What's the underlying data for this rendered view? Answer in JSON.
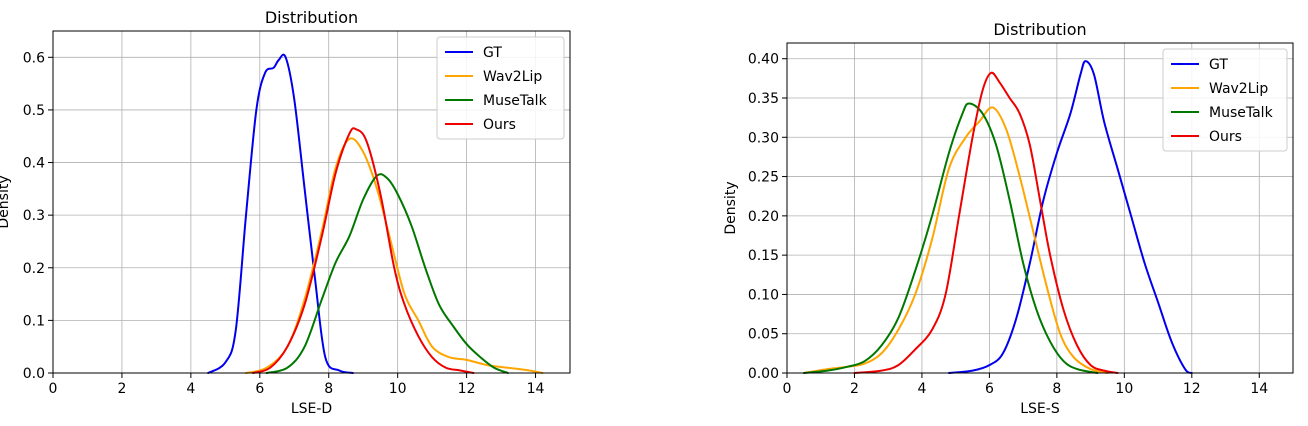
{
  "chart_data": [
    {
      "type": "line",
      "title": "Distribution",
      "xlabel": "LSE-D",
      "ylabel": "Density",
      "xlim": [
        0,
        15
      ],
      "ylim": [
        0,
        0.65
      ],
      "xticks": [
        "0",
        "2",
        "4",
        "6",
        "8",
        "10",
        "12",
        "14"
      ],
      "xtick_values": [
        0,
        2,
        4,
        6,
        8,
        10,
        12,
        14
      ],
      "yticks": [
        "0.0",
        "0.1",
        "0.2",
        "0.3",
        "0.4",
        "0.5",
        "0.6"
      ],
      "ytick_values": [
        0,
        0.1,
        0.2,
        0.3,
        0.4,
        0.5,
        0.6
      ],
      "grid": true,
      "legend_position": "top-right",
      "series": [
        {
          "name": "GT",
          "color": "#0000ee",
          "x": [
            4.5,
            5.0,
            5.3,
            5.6,
            5.9,
            6.15,
            6.4,
            6.55,
            6.75,
            7.0,
            7.3,
            7.6,
            7.9,
            8.3,
            8.7
          ],
          "y": [
            0.0,
            0.02,
            0.08,
            0.3,
            0.5,
            0.57,
            0.58,
            0.595,
            0.6,
            0.52,
            0.35,
            0.18,
            0.03,
            0.005,
            0.0
          ]
        },
        {
          "name": "Wav2Lip",
          "color": "#ffa500",
          "x": [
            5.6,
            6.2,
            6.8,
            7.3,
            7.8,
            8.2,
            8.6,
            9.0,
            9.4,
            9.8,
            10.2,
            10.6,
            11.0,
            11.5,
            12.0,
            12.6,
            13.2,
            13.8,
            14.2
          ],
          "y": [
            0.0,
            0.01,
            0.05,
            0.14,
            0.27,
            0.39,
            0.445,
            0.42,
            0.35,
            0.25,
            0.15,
            0.1,
            0.05,
            0.03,
            0.025,
            0.015,
            0.01,
            0.005,
            0.0
          ]
        },
        {
          "name": "MuseTalk",
          "color": "#007800",
          "x": [
            6.2,
            6.8,
            7.3,
            7.8,
            8.2,
            8.6,
            9.0,
            9.4,
            9.7,
            10.0,
            10.4,
            10.8,
            11.2,
            11.6,
            12.0,
            12.4,
            12.8,
            13.2
          ],
          "y": [
            0.0,
            0.01,
            0.05,
            0.14,
            0.21,
            0.26,
            0.33,
            0.375,
            0.37,
            0.34,
            0.28,
            0.2,
            0.13,
            0.09,
            0.055,
            0.03,
            0.01,
            0.0
          ]
        },
        {
          "name": "Ours",
          "color": "#ee0000",
          "x": [
            5.8,
            6.3,
            6.8,
            7.3,
            7.8,
            8.2,
            8.6,
            8.8,
            9.1,
            9.5,
            9.9,
            10.2,
            10.6,
            11.0,
            11.4,
            11.8,
            12.2
          ],
          "y": [
            0.0,
            0.01,
            0.05,
            0.13,
            0.26,
            0.38,
            0.455,
            0.463,
            0.44,
            0.34,
            0.2,
            0.13,
            0.07,
            0.03,
            0.01,
            0.005,
            0.0
          ]
        }
      ]
    },
    {
      "type": "line",
      "title": "Distribution",
      "xlabel": "LSE-S",
      "ylabel": "Density",
      "xlim": [
        0,
        15
      ],
      "ylim": [
        0,
        0.42
      ],
      "xticks": [
        "0",
        "2",
        "4",
        "6",
        "8",
        "10",
        "12",
        "14"
      ],
      "xtick_values": [
        0,
        2,
        4,
        6,
        8,
        10,
        12,
        14
      ],
      "yticks": [
        "0.00",
        "0.05",
        "0.10",
        "0.15",
        "0.20",
        "0.25",
        "0.30",
        "0.35",
        "0.40"
      ],
      "ytick_values": [
        0,
        0.05,
        0.1,
        0.15,
        0.2,
        0.25,
        0.3,
        0.35,
        0.4
      ],
      "grid": true,
      "legend_position": "top-right",
      "series": [
        {
          "name": "GT",
          "color": "#0000ee",
          "x": [
            4.8,
            5.5,
            6.0,
            6.4,
            6.8,
            7.2,
            7.6,
            8.0,
            8.4,
            8.7,
            8.85,
            9.1,
            9.4,
            9.8,
            10.2,
            10.6,
            11.0,
            11.4,
            11.8,
            12.0
          ],
          "y": [
            0.0,
            0.003,
            0.01,
            0.025,
            0.07,
            0.14,
            0.22,
            0.28,
            0.33,
            0.38,
            0.397,
            0.38,
            0.32,
            0.26,
            0.2,
            0.14,
            0.09,
            0.04,
            0.005,
            0.0
          ]
        },
        {
          "name": "Wav2Lip",
          "color": "#ffa500",
          "x": [
            0.5,
            1.2,
            1.8,
            2.3,
            2.8,
            3.3,
            3.8,
            4.3,
            4.8,
            5.3,
            5.7,
            6.1,
            6.5,
            6.9,
            7.3,
            7.7,
            8.1,
            8.5,
            9.0,
            9.5
          ],
          "y": [
            0.0,
            0.005,
            0.008,
            0.012,
            0.025,
            0.055,
            0.1,
            0.17,
            0.26,
            0.3,
            0.32,
            0.338,
            0.31,
            0.25,
            0.18,
            0.11,
            0.05,
            0.02,
            0.005,
            0.0
          ]
        },
        {
          "name": "MuseTalk",
          "color": "#007800",
          "x": [
            0.5,
            1.2,
            1.8,
            2.3,
            2.8,
            3.3,
            3.8,
            4.3,
            4.8,
            5.2,
            5.4,
            5.8,
            6.2,
            6.6,
            7.0,
            7.4,
            7.8,
            8.2,
            8.6,
            9.2
          ],
          "y": [
            0.0,
            0.003,
            0.008,
            0.015,
            0.035,
            0.07,
            0.13,
            0.2,
            0.28,
            0.33,
            0.343,
            0.33,
            0.29,
            0.22,
            0.14,
            0.08,
            0.04,
            0.015,
            0.005,
            0.0
          ]
        },
        {
          "name": "Ours",
          "color": "#ee0000",
          "x": [
            2.0,
            2.8,
            3.3,
            3.8,
            4.3,
            4.7,
            5.1,
            5.5,
            5.8,
            6.05,
            6.3,
            6.6,
            6.9,
            7.2,
            7.5,
            7.8,
            8.2,
            8.6,
            9.0,
            9.4,
            9.8
          ],
          "y": [
            0.0,
            0.003,
            0.01,
            0.03,
            0.055,
            0.1,
            0.2,
            0.3,
            0.36,
            0.382,
            0.37,
            0.35,
            0.33,
            0.29,
            0.22,
            0.15,
            0.08,
            0.035,
            0.01,
            0.003,
            0.0
          ]
        }
      ]
    }
  ]
}
